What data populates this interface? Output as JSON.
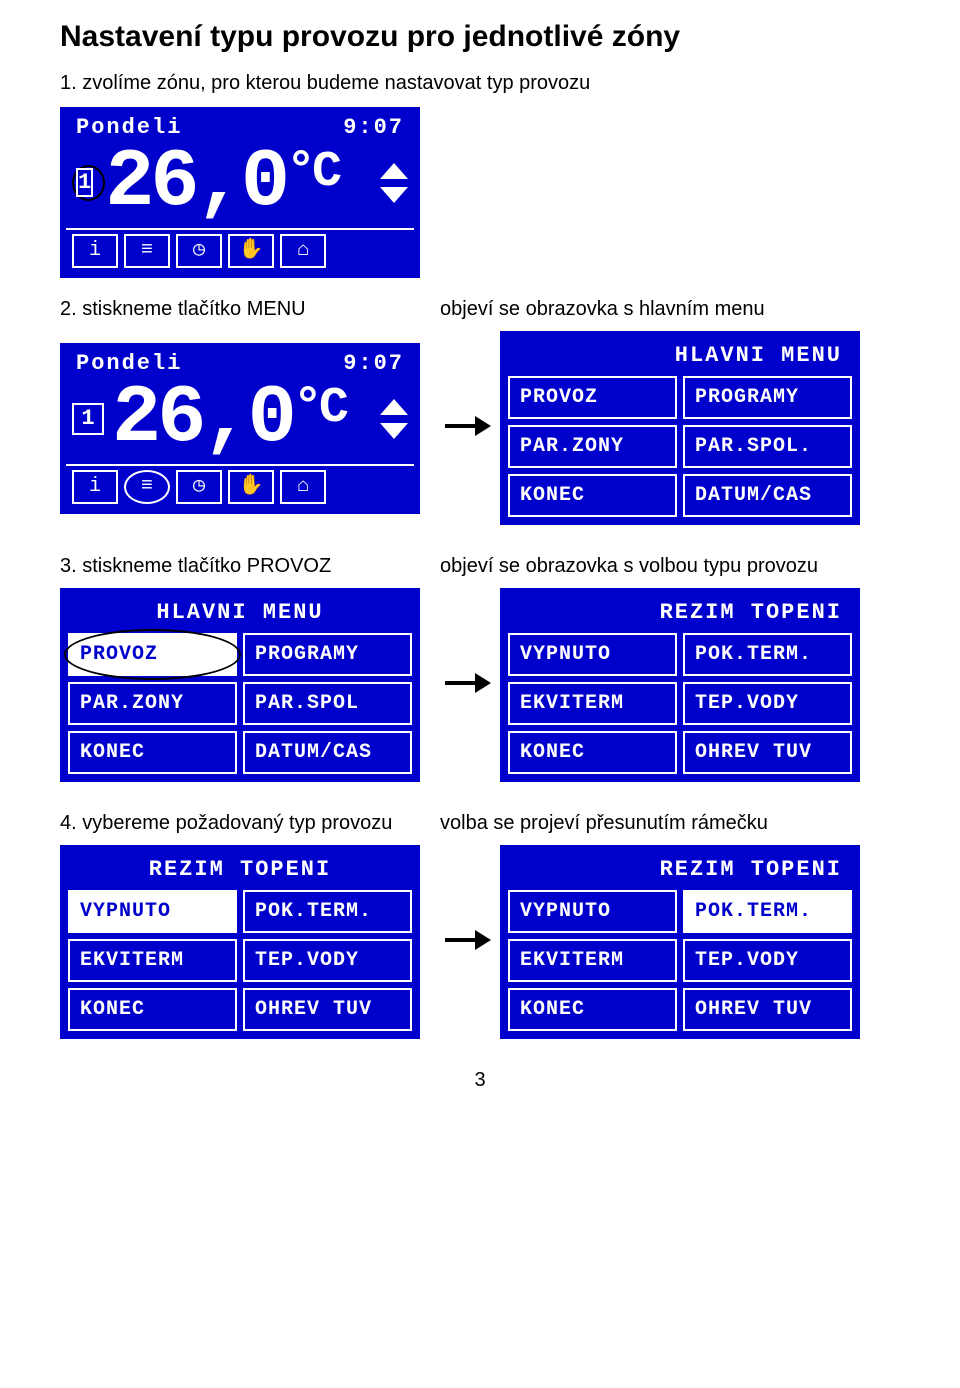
{
  "title": "Nastavení typu provozu pro jednotlivé zóny",
  "step1": "1. zvolíme zónu, pro kterou budeme nastavovat typ provozu",
  "step2_left": "2. stiskneme tlačítko MENU",
  "step2_right": "objeví se obrazovka s hlavním menu",
  "step3_left": "3. stiskneme tlačítko PROVOZ",
  "step3_right": "objeví se obrazovka s volbou typu provozu",
  "step4_left": "4. vybereme požadovaný typ provozu",
  "step4_right": "volba se projeví přesunutím rámečku",
  "page_number": "3",
  "lcd": {
    "day": "Pondeli",
    "time": "9:07",
    "zone": "1",
    "temp": "26,0",
    "unit": "°C",
    "icons": [
      "i",
      "≡",
      "◷",
      "✋",
      "⌂"
    ]
  },
  "menu_main": {
    "title": "HLAVNI MENU",
    "cells": [
      "PROVOZ",
      "PROGRAMY",
      "PAR.ZONY",
      "PAR.SPOL.",
      "KONEC",
      "DATUM/CAS"
    ]
  },
  "menu_main2": {
    "title": "HLAVNI MENU",
    "cells": [
      "PROVOZ",
      "PROGRAMY",
      "PAR.ZONY",
      "PAR.SPOL",
      "KONEC",
      "DATUM/CAS"
    ]
  },
  "menu_rezim": {
    "title": "REZIM TOPENI",
    "cells": [
      "VYPNUTO",
      "POK.TERM.",
      "EKVITERM",
      "TEP.VODY",
      "KONEC",
      "OHREV TUV"
    ]
  }
}
